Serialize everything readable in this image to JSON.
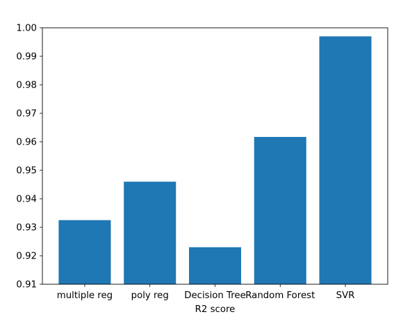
{
  "chart_data": {
    "type": "bar",
    "title": "",
    "xlabel": "R2 score",
    "ylabel": "",
    "categories": [
      "multiple reg",
      "poly reg",
      "Decision Tree",
      "Random Forest",
      "SVR"
    ],
    "values": [
      0.9325,
      0.946,
      0.923,
      0.9617,
      0.997
    ],
    "ylim": [
      0.91,
      1.0
    ],
    "yticks": [
      "0.91",
      "0.92",
      "0.93",
      "0.94",
      "0.95",
      "0.96",
      "0.97",
      "0.98",
      "0.99",
      "1.00"
    ],
    "grid": false,
    "bar_color": "#1f77b4"
  }
}
